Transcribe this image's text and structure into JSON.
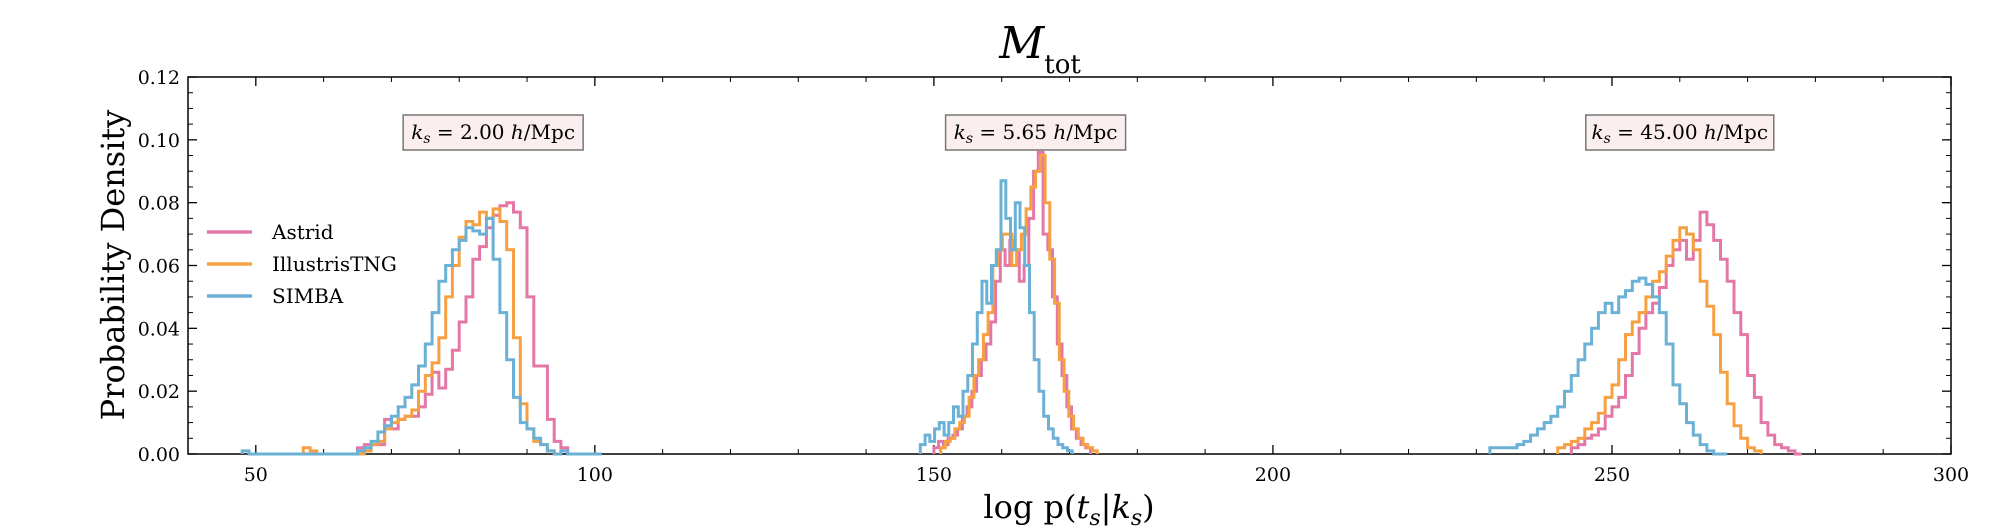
{
  "chart_data": {
    "type": "histogram",
    "title": "M_tot",
    "xlabel": "log p(t_s|k_s)",
    "ylabel": "Probability Density",
    "xlim": [
      40,
      300
    ],
    "ylim": [
      0,
      0.12
    ],
    "xticks": [
      50,
      100,
      150,
      200,
      250,
      300
    ],
    "yticks": [
      "0.00",
      "0.02",
      "0.04",
      "0.06",
      "0.08",
      "0.10",
      "0.12"
    ],
    "legend": {
      "position": "center-left",
      "entries": [
        "Astrid",
        "IllustrisTNG",
        "SIMBA"
      ]
    },
    "annotations": [
      {
        "text": "k_s = 2.00 h/Mpc",
        "x": 85
      },
      {
        "text": "k_s = 5.65 h/Mpc",
        "x": 165
      },
      {
        "text": "k_s = 45.00 h/Mpc",
        "x": 260
      }
    ],
    "colors": {
      "Astrid": "#e377a8",
      "IllustrisTNG": "#f5a143",
      "SIMBA": "#6ab1d5"
    },
    "series": [
      {
        "name": "Astrid",
        "groups": [
          {
            "start": 65,
            "width": 1,
            "values": [
              0.002,
              0.003,
              0.003,
              0.003,
              0.011,
              0.008,
              0.011,
              0.012,
              0.012,
              0.015,
              0.019,
              0.026,
              0.021,
              0.027,
              0.033,
              0.042,
              0.05,
              0.062,
              0.066,
              0.072,
              0.076,
              0.079,
              0.08,
              0.077,
              0.072,
              0.05,
              0.028,
              0.028,
              0.011,
              0.004,
              0.002
            ]
          },
          {
            "start": 150,
            "width": 0.7,
            "values": [
              0.002,
              0.004,
              0.003,
              0.005,
              0.006,
              0.008,
              0.012,
              0.015,
              0.02,
              0.025,
              0.03,
              0.035,
              0.042,
              0.055,
              0.065,
              0.06,
              0.068,
              0.065,
              0.055,
              0.06,
              0.075,
              0.09,
              0.096,
              0.07,
              0.065,
              0.05,
              0.035,
              0.025,
              0.015,
              0.008,
              0.005,
              0.003,
              0.002
            ]
          },
          {
            "start": 244,
            "width": 1,
            "values": [
              0.002,
              0.003,
              0.005,
              0.006,
              0.008,
              0.012,
              0.015,
              0.018,
              0.025,
              0.032,
              0.04,
              0.045,
              0.048,
              0.053,
              0.06,
              0.065,
              0.068,
              0.062,
              0.068,
              0.077,
              0.073,
              0.068,
              0.062,
              0.055,
              0.045,
              0.038,
              0.025,
              0.018,
              0.01,
              0.006,
              0.003,
              0.002,
              0.001,
              0.0
            ]
          }
        ]
      },
      {
        "name": "IllustrisTNG",
        "groups": [
          {
            "start": 57,
            "width": 1,
            "values": [
              0.002,
              0.001,
              0.0,
              0.0,
              0.0,
              0.0,
              0.0,
              0.0,
              0.0,
              0.001,
              0.003,
              0.004,
              0.008,
              0.01,
              0.011,
              0.012,
              0.014,
              0.02,
              0.025,
              0.029,
              0.037,
              0.05,
              0.06,
              0.069,
              0.074,
              0.073,
              0.077,
              0.075,
              0.078,
              0.074,
              0.065,
              0.037,
              0.016,
              0.008,
              0.004,
              0.003,
              0.001
            ]
          },
          {
            "start": 151,
            "width": 0.7,
            "values": [
              0.002,
              0.004,
              0.005,
              0.008,
              0.01,
              0.012,
              0.018,
              0.025,
              0.03,
              0.038,
              0.045,
              0.06,
              0.065,
              0.07,
              0.07,
              0.06,
              0.065,
              0.07,
              0.078,
              0.085,
              0.09,
              0.095,
              0.08,
              0.062,
              0.048,
              0.03,
              0.02,
              0.012,
              0.008,
              0.005,
              0.003,
              0.002,
              0.001
            ]
          },
          {
            "start": 242,
            "width": 1,
            "values": [
              0.002,
              0.003,
              0.004,
              0.005,
              0.008,
              0.01,
              0.013,
              0.018,
              0.022,
              0.03,
              0.038,
              0.042,
              0.045,
              0.05,
              0.055,
              0.058,
              0.063,
              0.068,
              0.072,
              0.07,
              0.065,
              0.055,
              0.047,
              0.038,
              0.026,
              0.016,
              0.009,
              0.005,
              0.002,
              0.001
            ]
          }
        ]
      },
      {
        "name": "SIMBA",
        "groups": [
          {
            "start": 48,
            "width": 1,
            "values": [
              0.001,
              0.0,
              0.0,
              0.0,
              0.0,
              0.0,
              0.0,
              0.0,
              0.0,
              0.0,
              0.0,
              0.0,
              0.0,
              0.0,
              0.0,
              0.0,
              0.0,
              0.001,
              0.002,
              0.004,
              0.007,
              0.009,
              0.012,
              0.015,
              0.018,
              0.022,
              0.028,
              0.035,
              0.045,
              0.055,
              0.06,
              0.065,
              0.068,
              0.072,
              0.071,
              0.07,
              0.075,
              0.062,
              0.045,
              0.03,
              0.018,
              0.01,
              0.008,
              0.005,
              0.003,
              0.001,
              0.0,
              0.001,
              0.0,
              0.0,
              0.0,
              0.0,
              0.0
            ]
          },
          {
            "start": 148,
            "width": 0.7,
            "values": [
              0.003,
              0.006,
              0.004,
              0.008,
              0.01,
              0.006,
              0.01,
              0.015,
              0.012,
              0.02,
              0.025,
              0.035,
              0.045,
              0.055,
              0.048,
              0.06,
              0.065,
              0.087,
              0.075,
              0.065,
              0.08,
              0.072,
              0.06,
              0.045,
              0.03,
              0.02,
              0.012,
              0.008,
              0.005,
              0.003,
              0.002,
              0.001
            ]
          },
          {
            "start": 232,
            "width": 1,
            "values": [
              0.002,
              0.002,
              0.002,
              0.002,
              0.003,
              0.004,
              0.006,
              0.008,
              0.01,
              0.012,
              0.015,
              0.02,
              0.025,
              0.03,
              0.035,
              0.04,
              0.045,
              0.048,
              0.045,
              0.05,
              0.052,
              0.055,
              0.056,
              0.054,
              0.05,
              0.045,
              0.035,
              0.022,
              0.016,
              0.01,
              0.006,
              0.003,
              0.001,
              0.0,
              0.0
            ]
          }
        ]
      }
    ]
  }
}
